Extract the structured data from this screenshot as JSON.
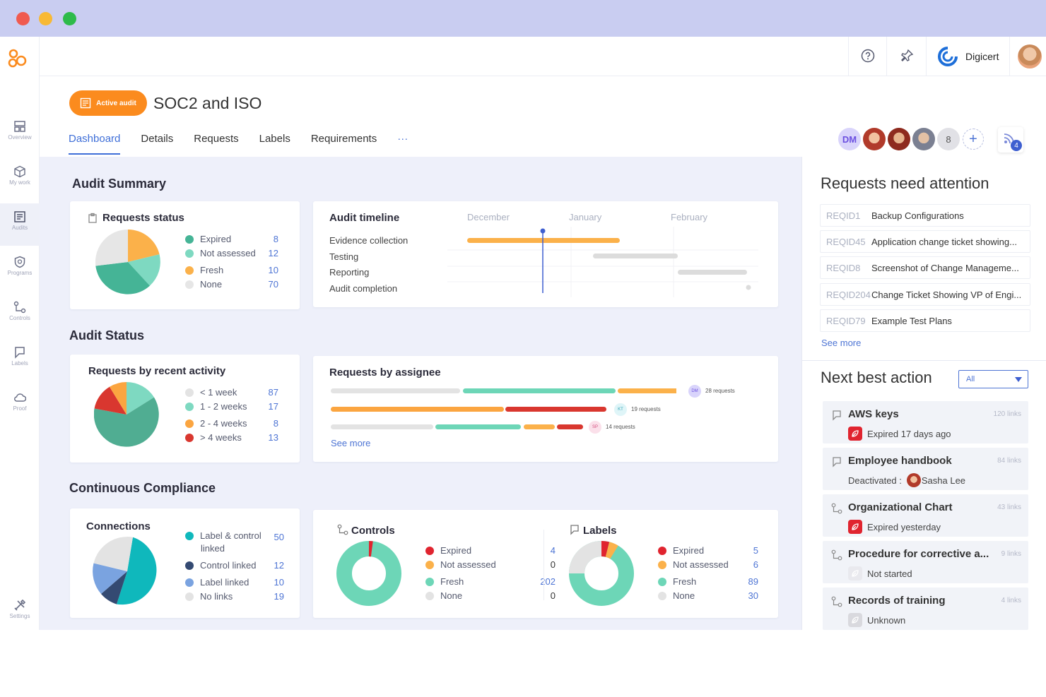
{
  "brand": {
    "company": "Digicert"
  },
  "sidebar": {
    "items": [
      {
        "label": "Overview",
        "icon": "overview-icon"
      },
      {
        "label": "My work",
        "icon": "cube-icon"
      },
      {
        "label": "Audits",
        "icon": "audits-icon"
      },
      {
        "label": "Programs",
        "icon": "shield-icon"
      },
      {
        "label": "Controls",
        "icon": "controls-icon"
      },
      {
        "label": "Labels",
        "icon": "label-icon"
      },
      {
        "label": "Proof",
        "icon": "cloud-icon"
      },
      {
        "label": "Settings",
        "icon": "tools-icon"
      }
    ]
  },
  "header": {
    "badge": "Active audit",
    "title": "SOC2 and ISO",
    "members": {
      "initials": "DM",
      "more_count": "8",
      "notification_count": "4"
    },
    "tabs": [
      "Dashboard",
      "Details",
      "Requests",
      "Labels",
      "Requirements",
      "···"
    ]
  },
  "sections": {
    "summary": "Audit Summary",
    "status": "Audit Status",
    "compliance": "Continuous Compliance"
  },
  "requests_status": {
    "title": "Requests status",
    "items": [
      {
        "label": "Expired",
        "value": "8",
        "color": "#45b496"
      },
      {
        "label": "Not assessed",
        "value": "12",
        "color": "#7ed9c1"
      },
      {
        "label": "Fresh",
        "value": "10",
        "color": "#fbb14a"
      },
      {
        "label": "None",
        "value": "70",
        "color": "#e6e6e6"
      }
    ]
  },
  "timeline": {
    "title": "Audit timeline",
    "months": [
      "December",
      "January",
      "February"
    ],
    "rows": [
      "Evidence collection",
      "Testing",
      "Reporting",
      "Audit completion"
    ]
  },
  "recent_activity": {
    "title": "Requests by recent activity",
    "items": [
      {
        "label": "< 1 week",
        "value": "87",
        "color": "#e3e3e3"
      },
      {
        "label": "1 - 2 weeks",
        "value": "17",
        "color": "#7ed9c1"
      },
      {
        "label": "2 - 4  weeks",
        "value": "8",
        "color": "#fba540"
      },
      {
        "label": "> 4 weeks",
        "value": "13",
        "color": "#d9372f"
      }
    ]
  },
  "assignee": {
    "title": "Requests by assignee",
    "rows": [
      {
        "initials": "DM",
        "label": "28 requests"
      },
      {
        "initials": "KT",
        "label": "19 requests"
      },
      {
        "initials": "SP",
        "label": "14 requests"
      }
    ],
    "see_more": "See more"
  },
  "connections": {
    "title": "Connections",
    "items": [
      {
        "label": "Label & control",
        "label2": "linked",
        "value": "50",
        "color": "#0fb8bc"
      },
      {
        "label": "Control linked",
        "value": "12",
        "color": "#344a72"
      },
      {
        "label": "Label linked",
        "value": "10",
        "color": "#7aa3e0"
      },
      {
        "label": "No links",
        "value": "19",
        "color": "#e3e3e3"
      }
    ]
  },
  "controls": {
    "title": "Controls",
    "items": [
      {
        "label": "Expired",
        "value": "4",
        "color": "#e0242f"
      },
      {
        "label": "Not assessed",
        "value": "0",
        "color": "#fbb14a"
      },
      {
        "label": "Fresh",
        "value": "202",
        "color": "#6dd6b7"
      },
      {
        "label": "None",
        "value": "0",
        "color": "#e3e3e3"
      }
    ]
  },
  "labels": {
    "title": "Labels",
    "items": [
      {
        "label": "Expired",
        "value": "5",
        "color": "#e0242f"
      },
      {
        "label": "Not assessed",
        "value": "6",
        "color": "#fbb14a"
      },
      {
        "label": "Fresh",
        "value": "89",
        "color": "#6dd6b7"
      },
      {
        "label": "None",
        "value": "30",
        "color": "#e3e3e3"
      }
    ]
  },
  "attention": {
    "title": "Requests need attention",
    "items": [
      {
        "id": "REQID1",
        "title": "Backup Configurations"
      },
      {
        "id": "REQID45",
        "title": "Application change ticket showing..."
      },
      {
        "id": "REQID8",
        "title": "Screenshot of Change Manageme..."
      },
      {
        "id": "REQID204",
        "title": "Change Ticket Showing VP of Engi..."
      },
      {
        "id": "REQID79",
        "title": "Example Test Plans"
      }
    ],
    "see_more": "See more"
  },
  "next_best_action": {
    "title": "Next best action",
    "filter": "All",
    "items": [
      {
        "title": "AWS keys",
        "links": "120 links",
        "status": "Expired 17 days ago",
        "icon": "label-icon"
      },
      {
        "title": "Employee handbook",
        "links": "84 links",
        "status_prefix": "Deactivated :",
        "status": "Sasha Lee",
        "icon": "label-icon"
      },
      {
        "title": "Organizational Chart",
        "links": "43 links",
        "status": "Expired yesterday",
        "icon": "controls-icon"
      },
      {
        "title": "Procedure for corrective a...",
        "links": "9 links",
        "status": "Not started",
        "icon": "controls-icon"
      },
      {
        "title": "Records of training",
        "links": "4 links",
        "status": "Unknown",
        "icon": "controls-icon"
      }
    ]
  }
}
